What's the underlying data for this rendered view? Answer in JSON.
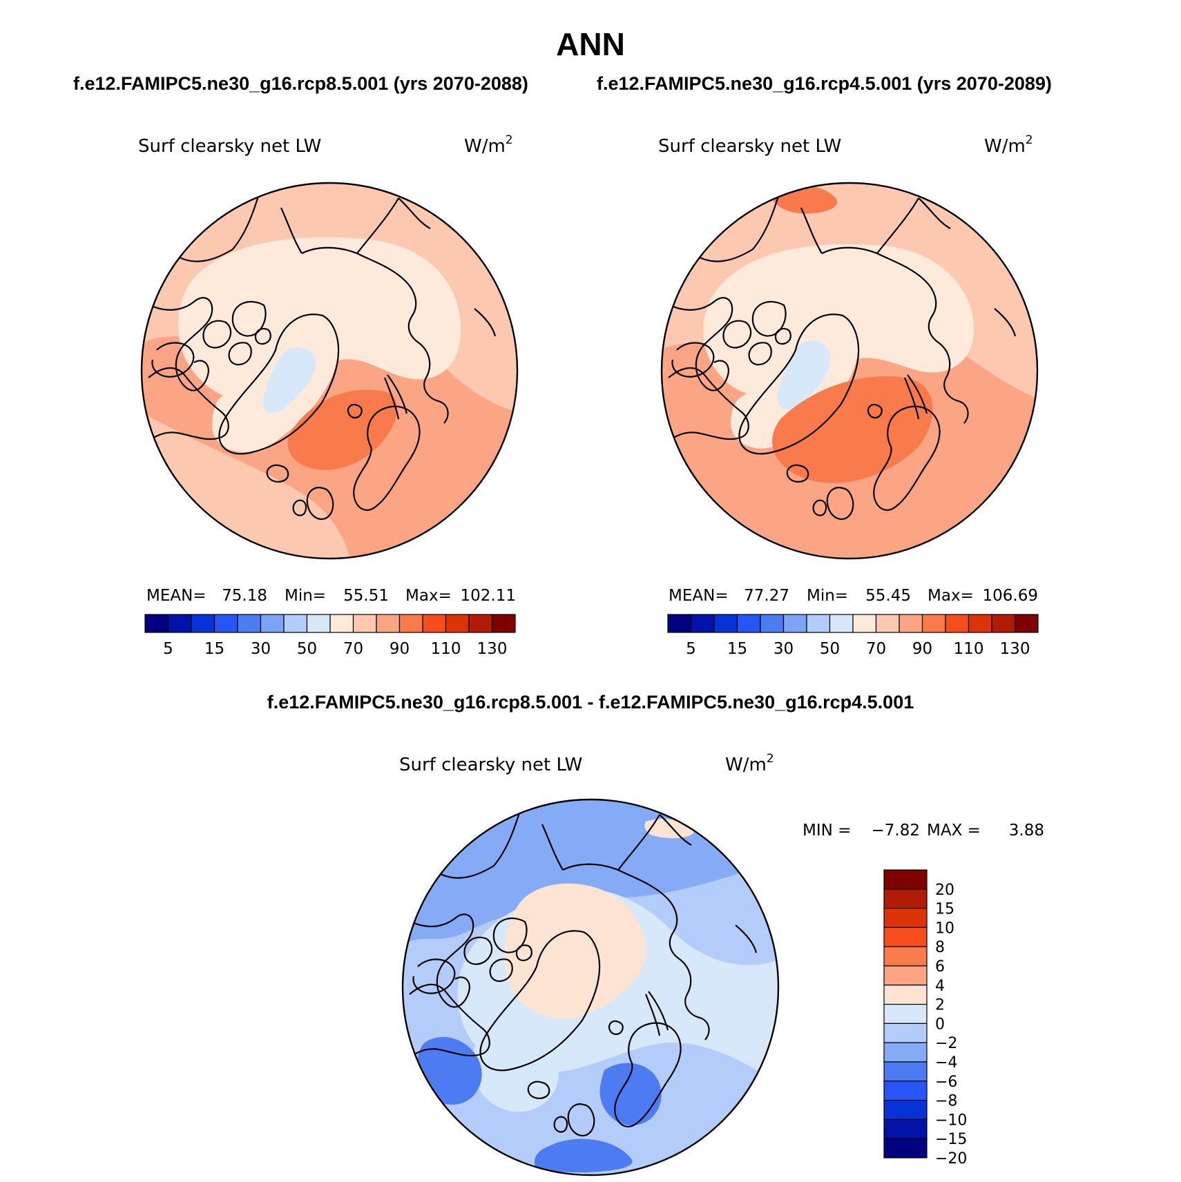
{
  "title": "ANN",
  "units_base": "W/m",
  "units_exp": "2",
  "panels": [
    {
      "case": "f.e12.FAMIPC5.ne30_g16.rcp8.5.001 (yrs 2070-2088)",
      "variable": "Surf clearsky net LW",
      "stats": {
        "mean_label": "MEAN=",
        "mean": "75.18",
        "min_label": "Min=",
        "min": "55.51",
        "max_label": "Max=",
        "max": "102.11"
      }
    },
    {
      "case": "f.e12.FAMIPC5.ne30_g16.rcp4.5.001 (yrs 2070-2089)",
      "variable": "Surf clearsky net LW",
      "stats": {
        "mean_label": "MEAN=",
        "mean": "77.27",
        "min_label": "Min=",
        "min": "55.45",
        "max_label": "Max=",
        "max": "106.69"
      }
    }
  ],
  "diff": {
    "case": "f.e12.FAMIPC5.ne30_g16.rcp8.5.001 - f.e12.FAMIPC5.ne30_g16.rcp4.5.001",
    "variable": "Surf clearsky net LW",
    "stats": {
      "min_label": "MIN =",
      "min": "−7.82",
      "max_label": "MAX =",
      "max": "3.88"
    }
  },
  "scale": {
    "colors": [
      "#000080",
      "#0012a8",
      "#0632d8",
      "#2855f5",
      "#4d7cf2",
      "#7ca3f6",
      "#b4ccfa",
      "#d8e8fb",
      "#fdeadb",
      "#fcc8b0",
      "#fba585",
      "#f97b4b",
      "#f54d1b",
      "#dd3308",
      "#b01c05",
      "#7e0000"
    ],
    "tick_labels": [
      "5",
      "15",
      "30",
      "50",
      "70",
      "90",
      "110",
      "130"
    ]
  },
  "diff_scale": {
    "colors_top_to_bottom": [
      "#7e0000",
      "#b01c05",
      "#dd3308",
      "#f54d1b",
      "#f97b4b",
      "#fba585",
      "#fde3d2",
      "#d8e8fb",
      "#b4ccfa",
      "#86abf6",
      "#4d7cf2",
      "#2855f5",
      "#0632d8",
      "#0012a8",
      "#000080"
    ],
    "tick_labels": [
      "20",
      "15",
      "10",
      "8",
      "6",
      "4",
      "2",
      "0",
      "−2",
      "−4",
      "−6",
      "−8",
      "−10",
      "−15",
      "−20"
    ]
  }
}
